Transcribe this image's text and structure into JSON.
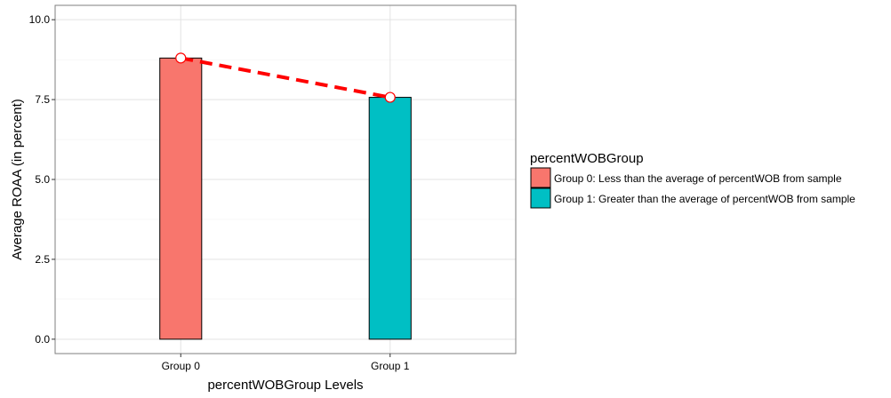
{
  "chart_data": {
    "type": "bar",
    "categories": [
      "Group 0",
      "Group 1"
    ],
    "values": [
      8.8,
      7.57
    ],
    "colors": [
      "#F8766D",
      "#00BFC4"
    ],
    "line_color": "#FF0000",
    "xlabel": "percentWOBGroup Levels",
    "ylabel": "Average ROAA (in percent)",
    "ylim": [
      -0.45,
      10.45
    ],
    "yticks": [
      0.0,
      2.5,
      5.0,
      7.5,
      10.0
    ],
    "ytick_labels": [
      "0.0",
      "2.5",
      "5.0",
      "7.5",
      "10.0"
    ],
    "grid": true,
    "connector": "dashed line with open circle markers joining the bar tops",
    "legend": {
      "title": "percentWOBGroup",
      "position": "right",
      "entries": [
        {
          "label": "Group 0: Less than the average of percentWOB from sample",
          "color": "#F8766D"
        },
        {
          "label": "Group 1: Greater than the average of percentWOB from sample",
          "color": "#00BFC4"
        }
      ]
    }
  }
}
